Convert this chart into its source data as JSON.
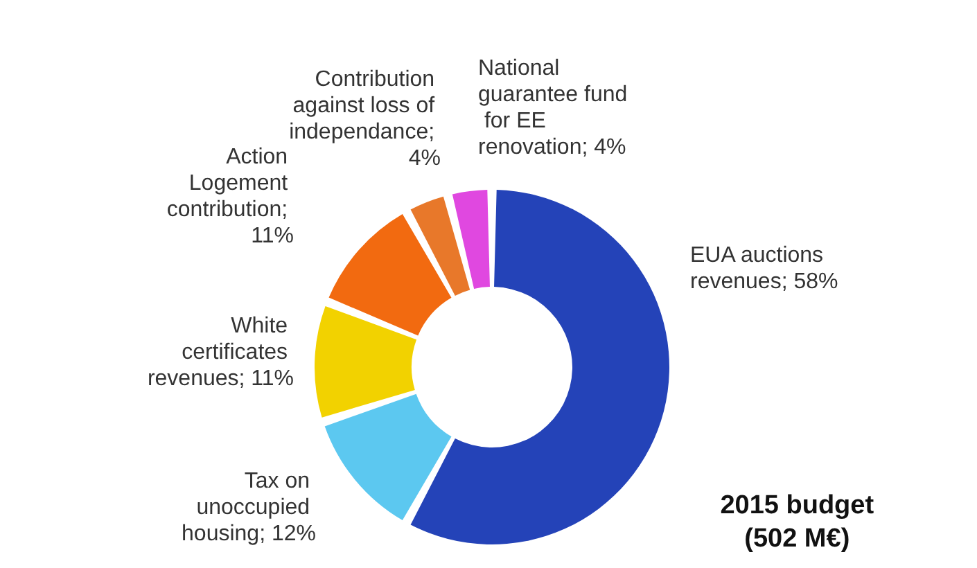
{
  "chart_data": {
    "type": "donut",
    "title": "2015 budget\n(502 M€)",
    "categories": [
      "EUA auctions revenues",
      "Tax on unoccupied housing",
      "White certificates revenues",
      "Action Logement contribution",
      "Contribution against loss of independance",
      "National guarantee fund for EE renovation"
    ],
    "values": [
      58,
      12,
      11,
      11,
      4,
      4
    ],
    "colors": [
      "#2443b8",
      "#5cc8f0",
      "#f2d200",
      "#f26a10",
      "#e8782a",
      "#e048e0"
    ],
    "value_labels": [
      "; 58%",
      "; 12%",
      "; 11%",
      "; 11%",
      "; 4%",
      "; 4%"
    ],
    "legend": false
  }
}
